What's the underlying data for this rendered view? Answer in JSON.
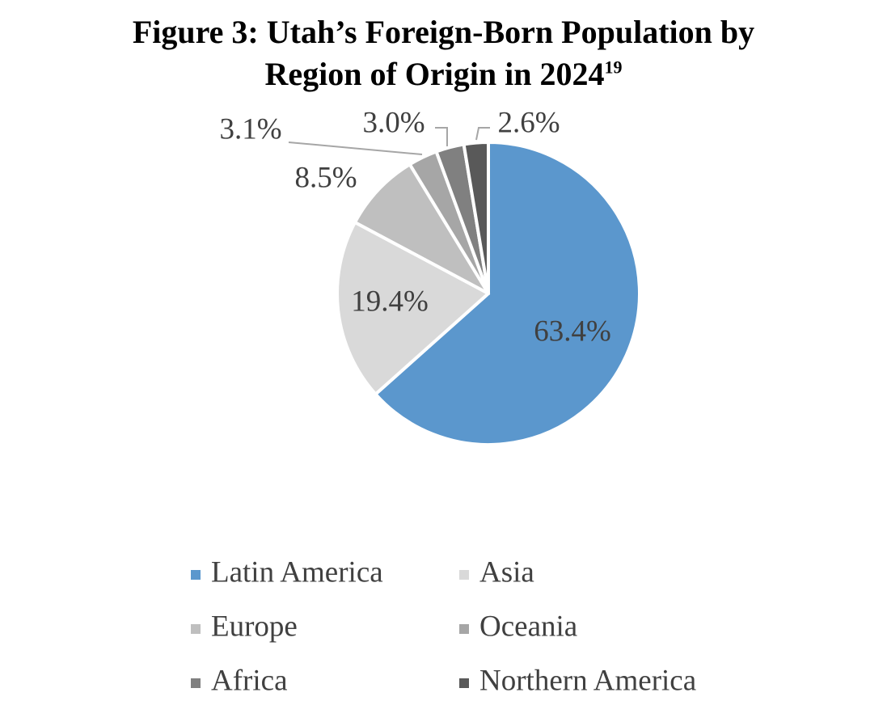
{
  "chart_data": {
    "type": "pie",
    "title": "Figure 3: Utah’s Foreign-Born Population by Region of Origin in 2024",
    "title_footnote": "19",
    "categories": [
      "Latin America",
      "Asia",
      "Europe",
      "Oceania",
      "Africa",
      "Northern America"
    ],
    "values": [
      63.4,
      19.4,
      8.5,
      3.1,
      3.0,
      2.6
    ],
    "value_labels": [
      "63.4%",
      "19.4%",
      "8.5%",
      "3.1%",
      "3.0%",
      "2.6%"
    ],
    "colors": [
      "#5b97cd",
      "#d9d9d9",
      "#bfbfbf",
      "#a6a6a6",
      "#808080",
      "#595959"
    ],
    "legend": "bottom"
  }
}
